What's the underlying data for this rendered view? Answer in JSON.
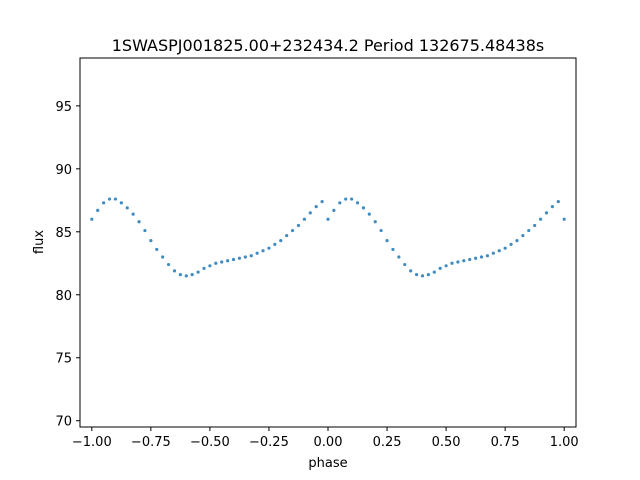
{
  "chart_data": {
    "type": "scatter",
    "title": "1SWASPJ001825.00+232434.2 Period 132675.48438s",
    "xlabel": "phase",
    "ylabel": "flux",
    "xlim": [
      -1.05,
      1.05
    ],
    "ylim": [
      69.5,
      98.8
    ],
    "grid": false,
    "legend": "none",
    "point_color": "#1f77b4",
    "x_ticks": [
      -1.0,
      -0.75,
      -0.5,
      -0.25,
      0.0,
      0.25,
      0.5,
      0.75,
      1.0
    ],
    "x_tick_labels": [
      "−1.00",
      "−0.75",
      "−0.50",
      "−0.25",
      "0.00",
      "0.25",
      "0.50",
      "0.75",
      "1.00"
    ],
    "y_ticks": [
      70,
      75,
      80,
      85,
      90,
      95
    ],
    "y_tick_labels": [
      "70",
      "75",
      "80",
      "85",
      "90",
      "95"
    ],
    "series": [
      {
        "x": [
          -1.0,
          -0.975,
          -0.95,
          -0.925,
          -0.9,
          -0.875,
          -0.85,
          -0.825,
          -0.8,
          -0.775,
          -0.75,
          -0.725,
          -0.7,
          -0.675,
          -0.65,
          -0.625,
          -0.6,
          -0.575,
          -0.55,
          -0.525,
          -0.5,
          -0.475,
          -0.45,
          -0.425,
          -0.4,
          -0.375,
          -0.35,
          -0.325,
          -0.3,
          -0.275,
          -0.25,
          -0.225,
          -0.2,
          -0.175,
          -0.15,
          -0.125,
          -0.1,
          -0.075,
          -0.05,
          -0.025,
          0.0,
          0.025,
          0.05,
          0.075,
          0.1,
          0.125,
          0.15,
          0.175,
          0.2,
          0.225,
          0.25,
          0.275,
          0.3,
          0.325,
          0.35,
          0.375,
          0.4,
          0.425,
          0.45,
          0.475,
          0.5,
          0.525,
          0.55,
          0.575,
          0.6,
          0.625,
          0.65,
          0.675,
          0.7,
          0.725,
          0.75,
          0.775,
          0.8,
          0.825,
          0.85,
          0.875,
          0.9,
          0.925,
          0.95,
          0.975,
          1.0
        ],
        "y": [
          86.0,
          86.7,
          87.3,
          87.6,
          87.6,
          87.3,
          86.9,
          86.4,
          85.8,
          85.1,
          84.3,
          83.6,
          83.0,
          82.4,
          81.9,
          81.6,
          81.5,
          81.6,
          81.8,
          82.1,
          82.3,
          82.5,
          82.6,
          82.7,
          82.8,
          82.9,
          83.0,
          83.1,
          83.3,
          83.5,
          83.7,
          84.0,
          84.3,
          84.7,
          85.1,
          85.5,
          86.0,
          86.5,
          87.0,
          87.4,
          86.0,
          86.7,
          87.3,
          87.6,
          87.6,
          87.3,
          86.9,
          86.4,
          85.8,
          85.1,
          84.3,
          83.6,
          83.0,
          82.4,
          81.9,
          81.6,
          81.5,
          81.6,
          81.8,
          82.1,
          82.3,
          82.5,
          82.6,
          82.7,
          82.8,
          82.9,
          83.0,
          83.1,
          83.3,
          83.5,
          83.7,
          84.0,
          84.3,
          84.7,
          85.1,
          85.5,
          86.0,
          86.5,
          87.0,
          87.4,
          86.0
        ]
      }
    ]
  }
}
